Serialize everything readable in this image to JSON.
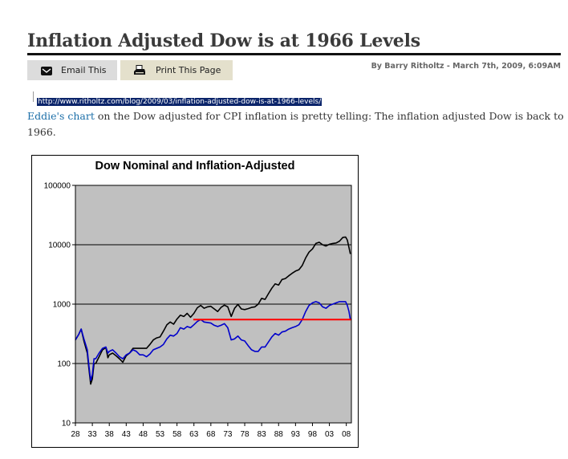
{
  "post": {
    "title": "Inflation Adjusted Dow is at 1966 Levels",
    "email_label": "Email This",
    "print_label": "Print This Page",
    "byline": "By Barry Ritholtz - March 7th, 2009, 6:09AM",
    "url": "http://www.ritholtz.com/blog/2009/03/inflation-adjusted-dow-is-at-1966-levels/",
    "link_text": "Eddie's chart",
    "body_text": " on the Dow adjusted for CPI inflation is pretty telling: The inflation adjusted Dow is back to 1966."
  },
  "colors": {
    "nominal": "#000000",
    "inflation_adjusted": "#0000cc",
    "reference_line": "#ff0000",
    "plot_background": "#c0c0c0"
  },
  "icons": {
    "email": "envelope-icon",
    "print": "printer-icon"
  },
  "chart_data": {
    "type": "line",
    "title": "Dow Nominal and Inflation-Adjusted",
    "xlabel": "",
    "ylabel": "",
    "y_scale": "log",
    "ylim": [
      10,
      100000
    ],
    "xlim": [
      1928,
      2009.5
    ],
    "x_ticks": [
      "28",
      "33",
      "38",
      "43",
      "48",
      "53",
      "58",
      "63",
      "68",
      "73",
      "78",
      "83",
      "88",
      "93",
      "98",
      "03",
      "08"
    ],
    "y_ticks": [
      "10",
      "100",
      "1000",
      "10000",
      "100000"
    ],
    "grid": "horizontal",
    "legend": "none",
    "series": [
      {
        "key": "nominal",
        "x": [
          1928,
          1929,
          1929.7,
          1930.5,
          1931.5,
          1932.0,
          1932.5,
          1933.0,
          1933.5,
          1934,
          1935,
          1936,
          1937,
          1937.6,
          1938,
          1939,
          1940,
          1941,
          1942,
          1943,
          1944,
          1945,
          1946,
          1947,
          1948,
          1949,
          1950,
          1951,
          1952,
          1953,
          1954,
          1955,
          1956,
          1957,
          1958,
          1959,
          1960,
          1961,
          1962,
          1963,
          1964,
          1965,
          1966,
          1967,
          1968,
          1969,
          1970,
          1971,
          1972,
          1973,
          1974,
          1975,
          1976,
          1977,
          1978,
          1979,
          1980,
          1981,
          1982,
          1983,
          1984,
          1985,
          1986,
          1987,
          1988,
          1989,
          1990,
          1991,
          1992,
          1993,
          1994,
          1995,
          1996,
          1997,
          1998,
          1999,
          2000,
          2001,
          2002,
          2003,
          2004,
          2005,
          2006,
          2007,
          2007.8,
          2008.3,
          2008.8,
          2009.2
        ],
        "y": [
          250,
          310,
          380,
          240,
          150,
          80,
          45,
          55,
          100,
          100,
          130,
          170,
          185,
          125,
          140,
          150,
          135,
          120,
          105,
          135,
          150,
          180,
          180,
          180,
          180,
          180,
          210,
          250,
          270,
          280,
          350,
          450,
          500,
          460,
          560,
          650,
          620,
          700,
          600,
          700,
          870,
          950,
          850,
          900,
          920,
          830,
          750,
          880,
          960,
          900,
          620,
          850,
          990,
          830,
          810,
          840,
          880,
          900,
          1000,
          1250,
          1200,
          1500,
          1850,
          2200,
          2100,
          2600,
          2700,
          3000,
          3300,
          3600,
          3800,
          4500,
          6000,
          7500,
          8500,
          10500,
          11000,
          10000,
          9500,
          10200,
          10500,
          10700,
          11500,
          13300,
          13500,
          12000,
          9000,
          7000
        ]
      },
      {
        "key": "inflation_adjusted",
        "x": [
          1928,
          1929,
          1929.7,
          1930.5,
          1931.5,
          1932.0,
          1932.5,
          1933.0,
          1933.5,
          1934,
          1935,
          1936,
          1937,
          1937.6,
          1938,
          1939,
          1940,
          1941,
          1942,
          1943,
          1944,
          1945,
          1946,
          1947,
          1948,
          1949,
          1950,
          1951,
          1952,
          1953,
          1954,
          1955,
          1956,
          1957,
          1958,
          1959,
          1960,
          1961,
          1962,
          1963,
          1964,
          1965,
          1966,
          1967,
          1968,
          1969,
          1970,
          1971,
          1972,
          1973,
          1974,
          1975,
          1976,
          1977,
          1978,
          1979,
          1980,
          1981,
          1982,
          1983,
          1984,
          1985,
          1986,
          1987,
          1988,
          1989,
          1990,
          1991,
          1992,
          1993,
          1994,
          1995,
          1996,
          1997,
          1998,
          1999,
          2000,
          2001,
          2002,
          2003,
          2004,
          2005,
          2006,
          2007,
          2007.8,
          2008.3,
          2008.8,
          2009.2
        ],
        "y": [
          250,
          310,
          380,
          260,
          170,
          90,
          52,
          65,
          120,
          120,
          150,
          180,
          190,
          150,
          160,
          170,
          150,
          130,
          120,
          140,
          150,
          170,
          160,
          140,
          140,
          130,
          145,
          170,
          180,
          190,
          210,
          260,
          300,
          290,
          320,
          400,
          380,
          420,
          400,
          450,
          510,
          550,
          500,
          490,
          480,
          440,
          420,
          440,
          470,
          400,
          250,
          260,
          290,
          250,
          240,
          200,
          170,
          160,
          160,
          190,
          190,
          230,
          280,
          320,
          300,
          340,
          350,
          380,
          400,
          420,
          450,
          550,
          750,
          950,
          1050,
          1100,
          1050,
          900,
          850,
          950,
          1000,
          1050,
          1100,
          1100,
          1100,
          950,
          750,
          550
        ]
      },
      {
        "key": "reference_1966",
        "x": [
          1962.8,
          2009.5
        ],
        "y": [
          550,
          550
        ]
      }
    ]
  }
}
